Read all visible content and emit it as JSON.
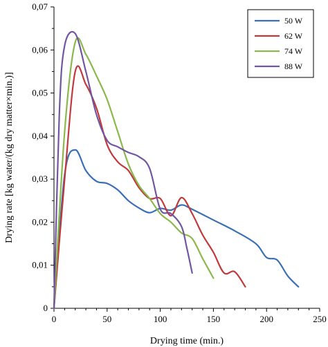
{
  "chart_data": {
    "type": "line",
    "xlabel": "Drying time (min.)",
    "ylabel": "Drying rate [kg water/(kg dry matter×min.)]",
    "xlim": [
      0,
      250
    ],
    "ylim": [
      0,
      0.07
    ],
    "x_ticks": [
      {
        "value": 0,
        "label": "0"
      },
      {
        "value": 50,
        "label": "50"
      },
      {
        "value": 100,
        "label": "100"
      },
      {
        "value": 150,
        "label": "150"
      },
      {
        "value": 200,
        "label": "200"
      },
      {
        "value": 250,
        "label": "250"
      }
    ],
    "y_ticks": [
      {
        "value": 0,
        "label": "0"
      },
      {
        "value": 0.01,
        "label": "0,01"
      },
      {
        "value": 0.02,
        "label": "0,02"
      },
      {
        "value": 0.03,
        "label": "0,03"
      },
      {
        "value": 0.04,
        "label": "0,04"
      },
      {
        "value": 0.05,
        "label": "0,05"
      },
      {
        "value": 0.06,
        "label": "0,06"
      },
      {
        "value": 0.07,
        "label": "0,07"
      }
    ],
    "grid": false,
    "legend_position": "top-right",
    "series": [
      {
        "name": "50 W",
        "color": "#3a6fb5",
        "points": [
          [
            0,
            0
          ],
          [
            10,
            0.031
          ],
          [
            20,
            0.0368
          ],
          [
            30,
            0.032
          ],
          [
            40,
            0.0295
          ],
          [
            50,
            0.029
          ],
          [
            60,
            0.0275
          ],
          [
            70,
            0.025
          ],
          [
            80,
            0.0233
          ],
          [
            90,
            0.0222
          ],
          [
            100,
            0.0232
          ],
          [
            110,
            0.0228
          ],
          [
            120,
            0.024
          ],
          [
            130,
            0.023
          ],
          [
            150,
            0.0205
          ],
          [
            170,
            0.018
          ],
          [
            190,
            0.015
          ],
          [
            200,
            0.0118
          ],
          [
            210,
            0.0112
          ],
          [
            220,
            0.0075
          ],
          [
            230,
            0.005
          ]
        ]
      },
      {
        "name": "62 W",
        "color": "#c0393b",
        "points": [
          [
            0,
            0
          ],
          [
            10,
            0.03
          ],
          [
            20,
            0.055
          ],
          [
            30,
            0.052
          ],
          [
            40,
            0.0465
          ],
          [
            50,
            0.038
          ],
          [
            60,
            0.034
          ],
          [
            70,
            0.032
          ],
          [
            80,
            0.028
          ],
          [
            90,
            0.0255
          ],
          [
            100,
            0.0255
          ],
          [
            110,
            0.0215
          ],
          [
            120,
            0.0257
          ],
          [
            130,
            0.022
          ],
          [
            140,
            0.017
          ],
          [
            150,
            0.013
          ],
          [
            160,
            0.0082
          ],
          [
            170,
            0.0085
          ],
          [
            180,
            0.005
          ]
        ]
      },
      {
        "name": "74 W",
        "color": "#8ab84a",
        "points": [
          [
            0,
            0
          ],
          [
            10,
            0.041
          ],
          [
            20,
            0.0618
          ],
          [
            30,
            0.059
          ],
          [
            40,
            0.054
          ],
          [
            50,
            0.0485
          ],
          [
            60,
            0.041
          ],
          [
            70,
            0.0335
          ],
          [
            80,
            0.0285
          ],
          [
            90,
            0.0255
          ],
          [
            100,
            0.022
          ],
          [
            110,
            0.02
          ],
          [
            120,
            0.0175
          ],
          [
            130,
            0.0162
          ],
          [
            140,
            0.0115
          ],
          [
            150,
            0.007
          ]
        ]
      },
      {
        "name": "88 W",
        "color": "#7155a0",
        "points": [
          [
            0,
            0
          ],
          [
            5,
            0.045
          ],
          [
            10,
            0.061
          ],
          [
            20,
            0.0638
          ],
          [
            30,
            0.055
          ],
          [
            40,
            0.045
          ],
          [
            50,
            0.039
          ],
          [
            60,
            0.0375
          ],
          [
            70,
            0.0362
          ],
          [
            80,
            0.0352
          ],
          [
            90,
            0.0325
          ],
          [
            100,
            0.023
          ],
          [
            110,
            0.022
          ],
          [
            120,
            0.019
          ],
          [
            125,
            0.014
          ],
          [
            130,
            0.0082
          ]
        ]
      }
    ]
  }
}
